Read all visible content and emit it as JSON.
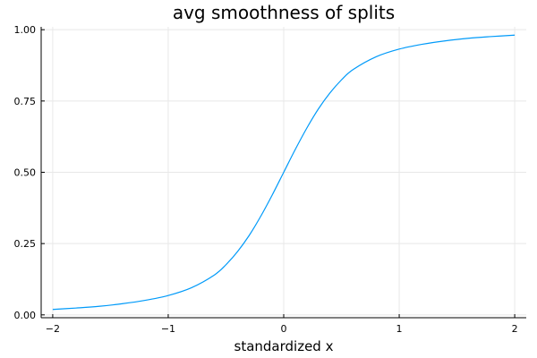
{
  "chart_data": {
    "type": "line",
    "title": "avg smoothness of splits",
    "xlabel": "standardized x",
    "ylabel": "",
    "xlim": [
      -2.1,
      2.1
    ],
    "ylim": [
      -0.01,
      1.01
    ],
    "x_ticks": [
      -2,
      -1,
      0,
      1,
      2
    ],
    "x_tick_labels": [
      "−2",
      "−1",
      "0",
      "1",
      "2"
    ],
    "y_ticks": [
      0.0,
      0.25,
      0.5,
      0.75,
      1.0
    ],
    "y_tick_labels": [
      "0.00",
      "0.25",
      "0.50",
      "0.75",
      "1.00"
    ],
    "grid": true,
    "legend": "none",
    "series": [
      {
        "color": "#009af9",
        "x": [
          -2.0,
          -1.8,
          -1.6,
          -1.4,
          -1.2,
          -1.0,
          -0.8,
          -0.6,
          -0.5,
          -0.4,
          -0.3,
          -0.2,
          -0.1,
          0.0,
          0.1,
          0.2,
          0.3,
          0.4,
          0.5,
          0.6,
          0.8,
          1.0,
          1.2,
          1.4,
          1.6,
          1.8,
          2.0
        ],
        "y": [
          0.019,
          0.024,
          0.03,
          0.039,
          0.051,
          0.068,
          0.095,
          0.14,
          0.176,
          0.222,
          0.278,
          0.345,
          0.42,
          0.5,
          0.58,
          0.655,
          0.722,
          0.778,
          0.824,
          0.86,
          0.905,
          0.932,
          0.949,
          0.961,
          0.97,
          0.976,
          0.981
        ]
      }
    ]
  }
}
